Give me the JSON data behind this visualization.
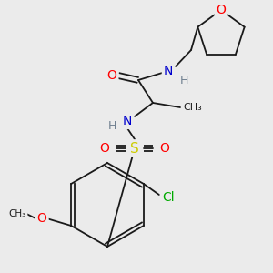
{
  "bg_color": "#ebebeb",
  "bond_color": "#1a1a1a",
  "colors": {
    "O": "#ff0000",
    "N": "#0000cd",
    "S": "#cccc00",
    "Cl": "#00aa00",
    "C": "#1a1a1a",
    "H": "#708090"
  },
  "figsize": [
    3.0,
    3.0
  ],
  "dpi": 100
}
